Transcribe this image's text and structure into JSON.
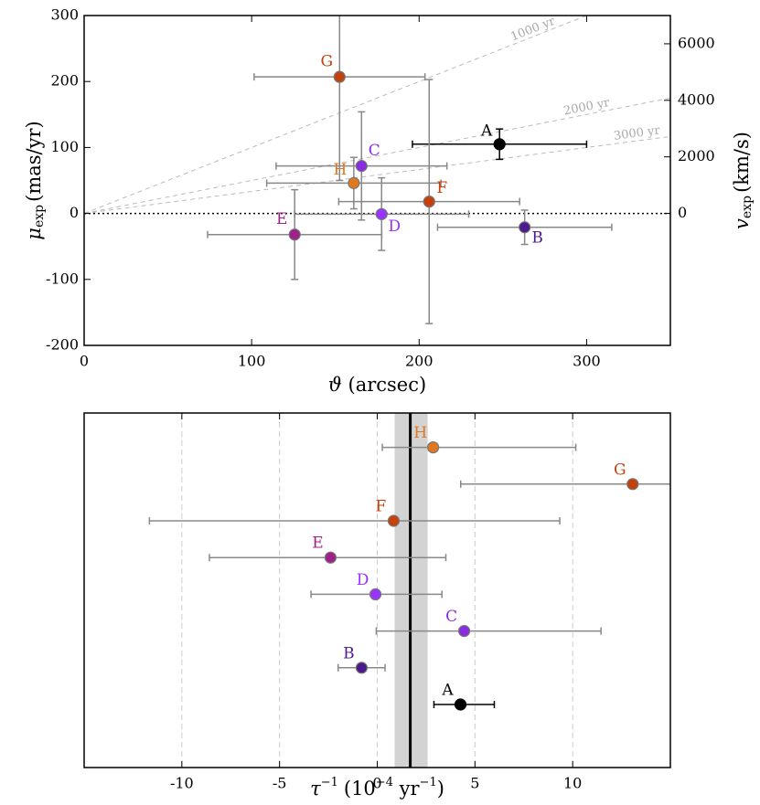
{
  "chart_data": [
    {
      "type": "scatter",
      "categories": [
        "A",
        "B",
        "C",
        "D",
        "E",
        "F",
        "G",
        "H"
      ],
      "x": [
        248,
        263,
        165.6,
        177.6,
        125.7,
        206,
        152.5,
        161
      ],
      "values": [
        105,
        -21,
        72,
        -1,
        -32,
        18,
        207,
        46
      ],
      "xerr": [
        52,
        52,
        51,
        52,
        52,
        54,
        51,
        52
      ],
      "yerr": [
        23,
        26,
        82,
        55,
        68,
        185,
        157,
        39
      ],
      "colors": [
        "#000000",
        "#4b1a8c",
        "#8b2be2",
        "#9933ff",
        "#a0208a",
        "#c8400c",
        "#c2420c",
        "#e07820"
      ],
      "xlim": [
        0,
        350
      ],
      "xticks": [
        0,
        100,
        200,
        300
      ],
      "ylim": [
        -200,
        300
      ],
      "yticks": [
        -200,
        -100,
        0,
        100,
        200,
        300
      ],
      "y2lim": [
        -4670,
        7000
      ],
      "y2ticks": [
        0,
        2000,
        4000,
        6000
      ],
      "xlabel": {
        "symbol": "ϑ",
        "unit": "(arcsec)"
      },
      "ylabel": {
        "symbol": "μ",
        "sub": "exp",
        "unit": "(mas/yr)"
      },
      "y2label": {
        "symbol": "v",
        "sub": "exp",
        "unit": "(km/s)"
      },
      "age_lines": [
        {
          "years": 1000,
          "label": "1000 yr"
        },
        {
          "years": 2000,
          "label": "2000 yr"
        },
        {
          "years": 3000,
          "label": "3000 yr"
        }
      ]
    },
    {
      "type": "errorbar_h",
      "categories": [
        "A",
        "B",
        "C",
        "D",
        "E",
        "F",
        "G",
        "H"
      ],
      "values": [
        4.26,
        -0.8,
        4.45,
        -0.09,
        -2.39,
        0.84,
        13.07,
        2.86
      ],
      "xerr_low": [
        1.36,
        1.2,
        4.5,
        3.3,
        6.2,
        12.5,
        8.8,
        2.6
      ],
      "xerr_high": [
        1.73,
        1.2,
        7.0,
        3.4,
        5.9,
        8.5,
        5.0,
        7.3
      ],
      "colors": [
        "#000000",
        "#4b1a8c",
        "#8b2be2",
        "#9933ff",
        "#a0208a",
        "#c8400c",
        "#c2420c",
        "#e07820"
      ],
      "band": {
        "center": 1.69,
        "low": 0.89,
        "high": 2.58
      },
      "xlim": [
        -15,
        15
      ],
      "xticks": [
        -10,
        -5,
        0,
        5,
        10
      ],
      "grid": true,
      "xlabel": {
        "symbol": "τ",
        "sup": "−1",
        "open": "(10",
        "sup2": "−4",
        "mid": " yr",
        "sup3": "−1",
        "close": ")"
      }
    }
  ]
}
